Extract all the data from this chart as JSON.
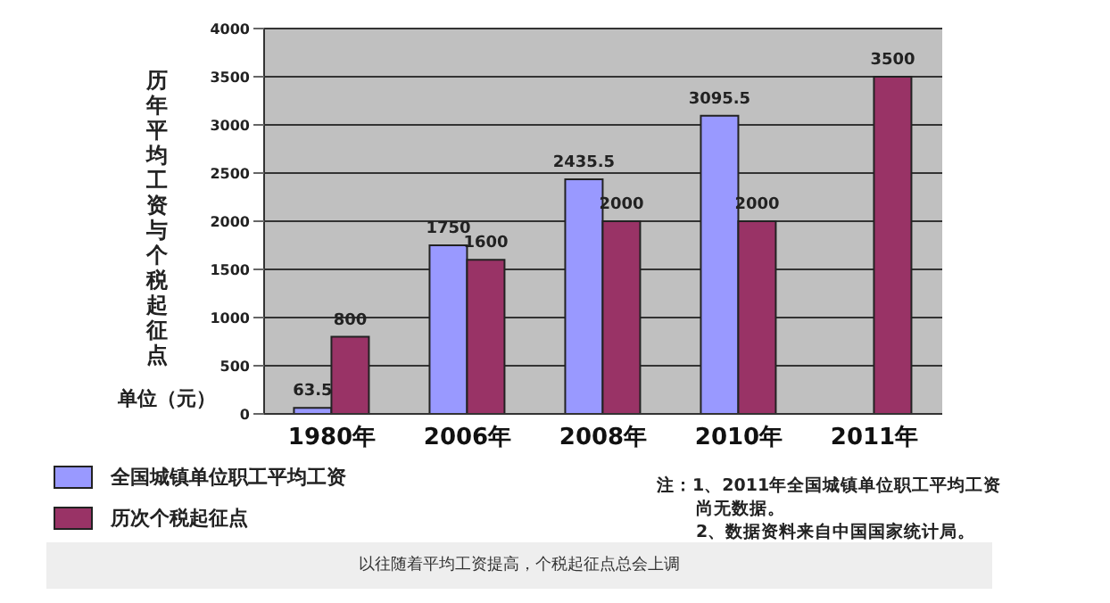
{
  "chart_data": {
    "type": "bar",
    "ylabel": "历年平均工资与个税起征点",
    "categories": [
      "1980年",
      "2006年",
      "2008年",
      "2010年",
      "2011年"
    ],
    "series": [
      {
        "name": "全国城镇单位职工平均工资",
        "color": "#9999ff",
        "values": [
          63.5,
          1750,
          2435.5,
          3095.5,
          null
        ]
      },
      {
        "name": "历次个税起征点",
        "color": "#993366",
        "values": [
          800,
          1600,
          2000,
          2000,
          3500
        ]
      }
    ],
    "ylim": [
      0,
      4000
    ],
    "yticks": [
      0,
      500,
      1000,
      1500,
      2000,
      2500,
      3000,
      3500,
      4000
    ],
    "grid": "y",
    "legend": "bottom left",
    "data_labels": true,
    "annotations": [
      "单位（元）",
      "注：1、2011年全国城镇单位职工平均工资尚无数据。",
      "2、数据资料来自中国国家统计局。",
      "以往随着平均工资提高，个税起征点总会上调"
    ]
  }
}
